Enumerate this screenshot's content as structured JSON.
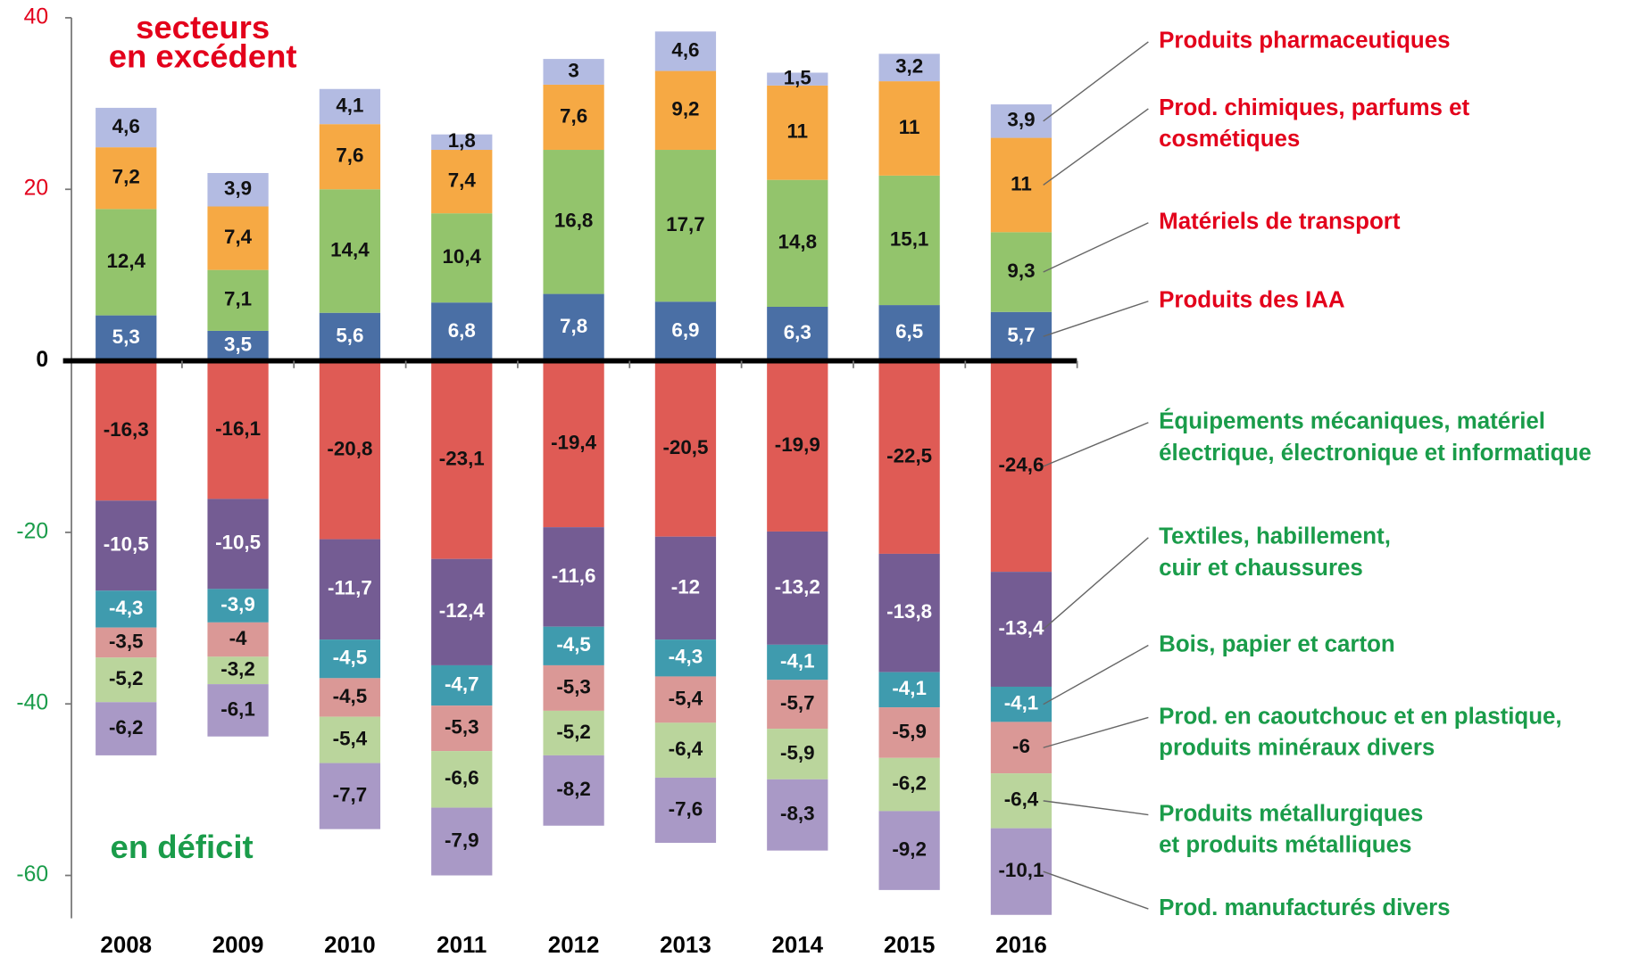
{
  "chart_data": {
    "type": "stacked_bar",
    "annotations": [
      "secteurs\nen excédent",
      "en déficit"
    ],
    "categories": [
      "2008",
      "2009",
      "2010",
      "2011",
      "2012",
      "2013",
      "2014",
      "2015",
      "2016"
    ],
    "ylim": [
      -65,
      40
    ],
    "yticks": [
      40,
      20,
      0,
      -20,
      -40,
      -60
    ],
    "series": [
      {
        "name": "Produits des IAA",
        "color": "#4a6fa5",
        "values": [
          5.3,
          3.5,
          5.6,
          6.8,
          7.8,
          6.9,
          6.3,
          6.5,
          5.7
        ],
        "value_labels": [
          "5,3",
          "3,5",
          "5,6",
          "6,8",
          "7,8",
          "6,9",
          "6,3",
          "6,5",
          "5,7"
        ]
      },
      {
        "name": "Matériels de transport",
        "color": "#93c46c",
        "values": [
          12.4,
          7.1,
          14.4,
          10.4,
          16.8,
          17.7,
          14.8,
          15.1,
          9.3
        ],
        "value_labels": [
          "12,4",
          "7,1",
          "14,4",
          "10,4",
          "16,8",
          "17,7",
          "14,8",
          "15,1",
          "9,3"
        ]
      },
      {
        "name": "Prod. chimiques, parfums et\ncosmétiques",
        "color": "#f6a944",
        "values": [
          7.2,
          7.4,
          7.6,
          7.4,
          7.6,
          9.2,
          11,
          11,
          11
        ],
        "value_labels": [
          "7,2",
          "7,4",
          "7,6",
          "7,4",
          "7,6",
          "9,2",
          "11",
          "11",
          "11"
        ]
      },
      {
        "name": "Produits pharmaceutiques",
        "color": "#b3bbe2",
        "values": [
          4.6,
          3.9,
          4.1,
          1.8,
          3,
          4.6,
          1.5,
          3.2,
          3.9
        ],
        "value_labels": [
          "4,6",
          "3,9",
          "4,1",
          "1,8",
          "3",
          "4,6",
          "1,5",
          "3,2",
          "3,9"
        ]
      },
      {
        "name": "Équipements mécaniques, matériel\nélectrique, électronique et informatique",
        "color": "#df5b55",
        "values": [
          -16.3,
          -16.1,
          -20.8,
          -23.1,
          -19.4,
          -20.5,
          -19.9,
          -22.5,
          -24.6
        ],
        "value_labels": [
          "-16,3",
          "-16,1",
          "-20,8",
          "-23,1",
          "-19,4",
          "-20,5",
          "-19,9",
          "-22,5",
          "-24,6"
        ]
      },
      {
        "name": "Textiles, habillement,\ncuir et chaussures",
        "color": "#745c93",
        "values": [
          -10.5,
          -10.5,
          -11.7,
          -12.4,
          -11.6,
          -12,
          -13.2,
          -13.8,
          -13.4
        ],
        "value_labels": [
          "-10,5",
          "-10,5",
          "-11,7",
          "-12,4",
          "-11,6",
          "-12",
          "-13,2",
          "-13,8",
          "-13,4"
        ]
      },
      {
        "name": "Bois, papier et carton",
        "color": "#3f9bae",
        "values": [
          -4.3,
          -3.9,
          -4.5,
          -4.7,
          -4.5,
          -4.3,
          -4.1,
          -4.1,
          -4.1
        ],
        "value_labels": [
          "-4,3",
          "-3,9",
          "-4,5",
          "-4,7",
          "-4,5",
          "-4,3",
          "-4,1",
          "-4,1",
          "-4,1"
        ]
      },
      {
        "name": "Prod. en caoutchouc et en plastique,\nproduits minéraux divers",
        "color": "#da9896",
        "values": [
          -3.5,
          -4,
          -4.5,
          -5.3,
          -5.3,
          -5.4,
          -5.7,
          -5.9,
          -6
        ],
        "value_labels": [
          "-3,5",
          "-4",
          "-4,5",
          "-5,3",
          "-5,3",
          "-5,4",
          "-5,7",
          "-5,9",
          "-6"
        ]
      },
      {
        "name": "Produits métallurgiques\net produits métalliques",
        "color": "#bad59c",
        "values": [
          -5.2,
          -3.2,
          -5.4,
          -6.6,
          -5.2,
          -6.4,
          -5.9,
          -6.2,
          -6.4
        ],
        "value_labels": [
          "-5,2",
          "-3,2",
          "-5,4",
          "-6,6",
          "-5,2",
          "-6,4",
          "-5,9",
          "-6,2",
          "-6,4"
        ]
      },
      {
        "name": "Prod. manufacturés divers",
        "color": "#a999c6",
        "values": [
          -6.2,
          -6.1,
          -7.7,
          -7.9,
          -8.2,
          -7.6,
          -8.3,
          -9.2,
          -10.1
        ],
        "value_labels": [
          "-6,2",
          "-6,1",
          "-7,7",
          "-7,9",
          "-8,2",
          "-7,6",
          "-8,3",
          "-9,2",
          "-10,1"
        ]
      }
    ]
  }
}
